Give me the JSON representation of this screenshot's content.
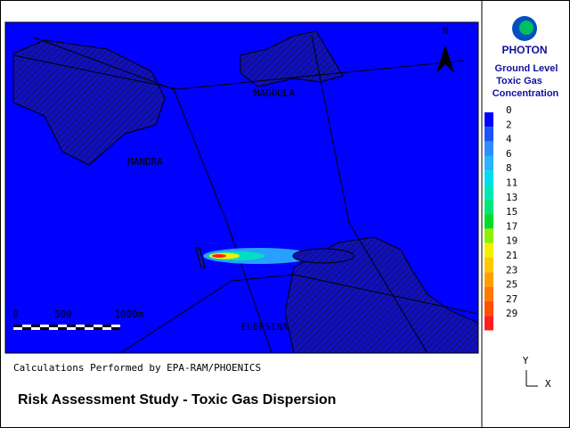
{
  "logo": "PHOTON",
  "legend": {
    "title": [
      "Ground Level",
      "Toxic Gas",
      "Concentration"
    ],
    "items": [
      {
        "value": 0,
        "color": "#0000ff"
      },
      {
        "value": 2,
        "color": "#1e50ff"
      },
      {
        "value": 4,
        "color": "#2d8cff"
      },
      {
        "value": 6,
        "color": "#28b4ff"
      },
      {
        "value": 8,
        "color": "#00dcf0"
      },
      {
        "value": 11,
        "color": "#00e6b4"
      },
      {
        "value": 13,
        "color": "#00e678"
      },
      {
        "value": 15,
        "color": "#00dc28"
      },
      {
        "value": 17,
        "color": "#8cf000"
      },
      {
        "value": 19,
        "color": "#f0f000"
      },
      {
        "value": 21,
        "color": "#ffc800"
      },
      {
        "value": 23,
        "color": "#ffa000"
      },
      {
        "value": 25,
        "color": "#ff7800"
      },
      {
        "value": 27,
        "color": "#ff5000"
      },
      {
        "value": 29,
        "color": "#ff1e1e"
      }
    ]
  },
  "map": {
    "north": "N",
    "places": [
      "MAGOULA",
      "MANDRA",
      "ELEFSINA"
    ],
    "scale": [
      "0",
      "500",
      "1000m"
    ]
  },
  "footer": {
    "credit": "Calculations Performed by EPA-RAM/PHOENICS",
    "title": "Risk Assessment Study - Toxic Gas Dispersion"
  },
  "axes": {
    "y": "Y",
    "x": "X"
  }
}
